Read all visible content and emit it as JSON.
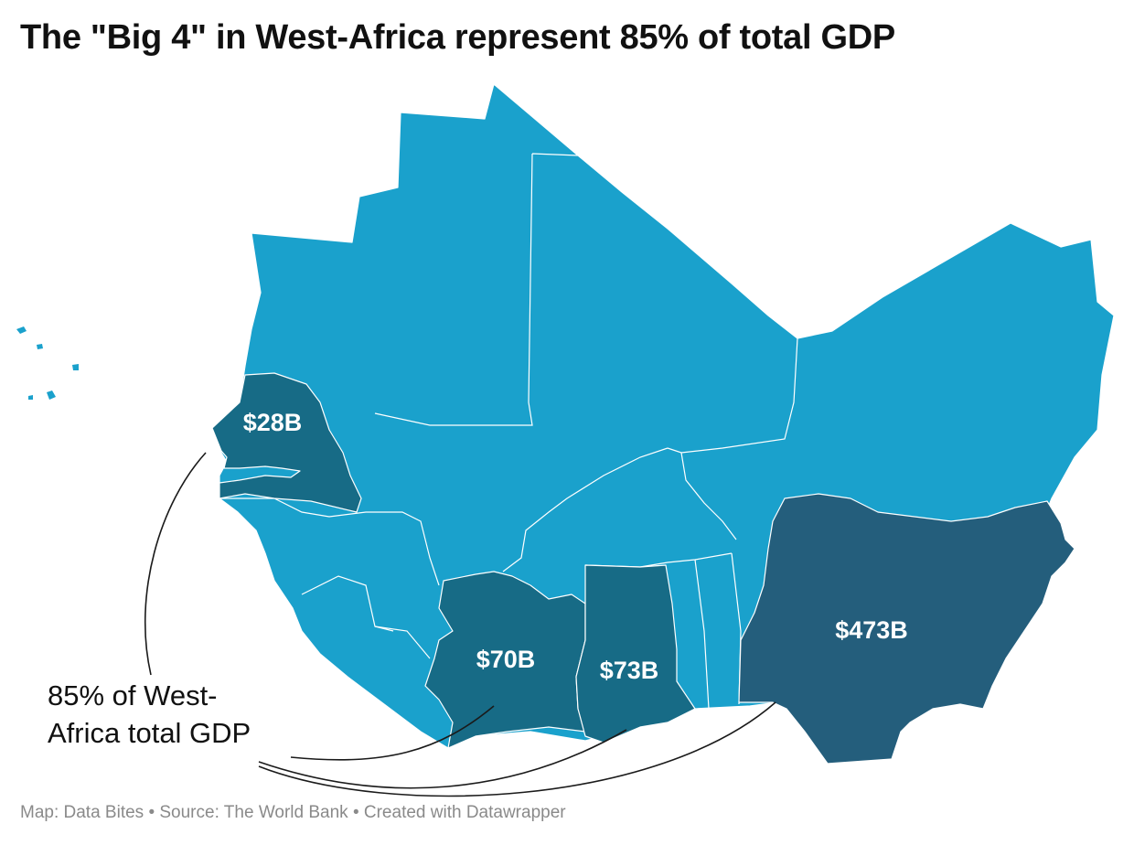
{
  "title": "The \"Big 4\" in West-Africa represent 85% of total GDP",
  "annotation": "85% of West-\nAfrica total GDP",
  "footer": "Map: Data Bites • Source: The World Bank • Created with Datawrapper",
  "highlighted_countries": [
    {
      "name": "Senegal",
      "label": "$28B"
    },
    {
      "name": "Côte d'Ivoire",
      "label": "$70B"
    },
    {
      "name": "Ghana",
      "label": "$73B"
    },
    {
      "name": "Nigeria",
      "label": "$473B"
    }
  ],
  "colors": {
    "background_region": "#1aa1cc",
    "highlight": "#176b86",
    "highlight_largest": "#245e7c",
    "country_border": "#ffffff",
    "footer_text": "#8a8a8a"
  }
}
